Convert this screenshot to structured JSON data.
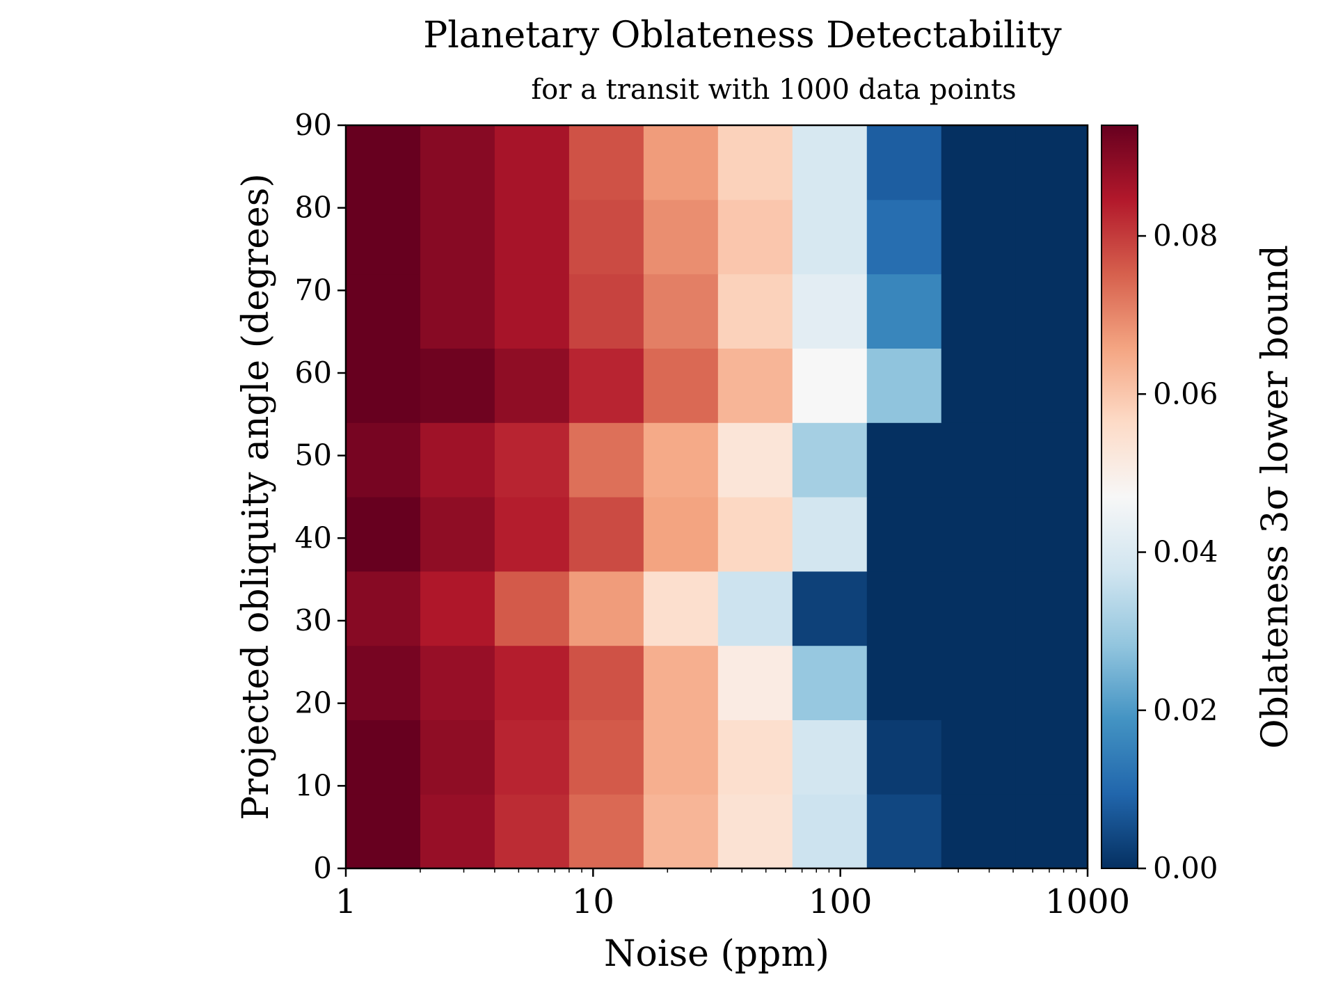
{
  "chart_data": {
    "type": "heatmap",
    "title": "Planetary Oblateness Detectability",
    "subtitle": "for a transit with 1000 data points",
    "xlabel": "Noise (ppm)",
    "ylabel": "Projected obliquity angle (degrees)",
    "colorbar_label": "Oblateness 3σ lower bound",
    "x_scale": "log",
    "x_ticks": [
      "1",
      "10",
      "100",
      "1000"
    ],
    "x_lim": [
      1,
      1000
    ],
    "x_edges": [
      1,
      2,
      4,
      8,
      16,
      32,
      64,
      128,
      256,
      512,
      1000
    ],
    "y_ticks": [
      "0",
      "10",
      "20",
      "30",
      "40",
      "50",
      "60",
      "70",
      "80",
      "90"
    ],
    "y_lim": [
      0,
      90
    ],
    "y_edges": [
      0,
      9,
      18,
      27,
      36,
      45,
      54,
      63,
      72,
      81,
      90
    ],
    "colorbar_ticks": [
      "0.00",
      "0.02",
      "0.04",
      "0.06",
      "0.08"
    ],
    "colorbar_range": [
      0,
      0.094
    ],
    "colormap": "RdBu_r",
    "grid": false,
    "values": [
      [
        0.094,
        0.088,
        0.082,
        0.074,
        0.063,
        0.054,
        0.037,
        0.004,
        0.0,
        0.0
      ],
      [
        0.094,
        0.089,
        0.083,
        0.076,
        0.064,
        0.055,
        0.038,
        0.002,
        0.0,
        0.0
      ],
      [
        0.092,
        0.088,
        0.084,
        0.077,
        0.064,
        0.051,
        0.029,
        0.0,
        0.0,
        0.0
      ],
      [
        0.09,
        0.085,
        0.076,
        0.067,
        0.055,
        0.037,
        0.003,
        0.0,
        0.0,
        0.0
      ],
      [
        0.094,
        0.089,
        0.084,
        0.078,
        0.066,
        0.057,
        0.038,
        0.0,
        0.0,
        0.0
      ],
      [
        0.092,
        0.087,
        0.083,
        0.073,
        0.065,
        0.053,
        0.031,
        0.0,
        0.0,
        0.0
      ],
      [
        0.094,
        0.093,
        0.089,
        0.083,
        0.074,
        0.063,
        0.047,
        0.028,
        0.0,
        0.0
      ],
      [
        0.094,
        0.09,
        0.086,
        0.079,
        0.071,
        0.058,
        0.042,
        0.016,
        0.0,
        0.0
      ],
      [
        0.094,
        0.09,
        0.086,
        0.078,
        0.069,
        0.06,
        0.039,
        0.011,
        0.0,
        0.0
      ],
      [
        0.094,
        0.09,
        0.086,
        0.077,
        0.067,
        0.058,
        0.039,
        0.008,
        0.0,
        0.0
      ]
    ]
  }
}
